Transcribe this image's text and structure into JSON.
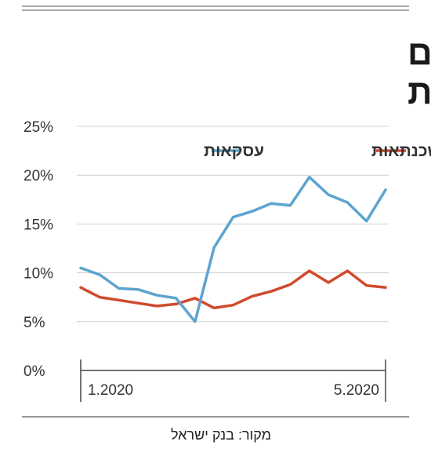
{
  "chart_data": {
    "type": "line",
    "title_lines": [
      "המשקיעים לא אחראים",
      "לקפיצה במשכנתאות"
    ],
    "source": "מקור: בנק ישראל",
    "ylim": [
      0,
      25
    ],
    "y_ticks": [
      0,
      5,
      10,
      15,
      20,
      25
    ],
    "y_tick_labels": [
      "0%",
      "5%",
      "10%",
      "15%",
      "20%",
      "25%"
    ],
    "x_tick_labels": [
      {
        "index": 0,
        "label": "1.2020"
      },
      {
        "index": 19,
        "label": "5.2020"
      }
    ],
    "grid": true,
    "legend_position": "top",
    "series": [
      {
        "name": "משכנתאות",
        "color": "#d04a2e",
        "values": [
          8.5,
          7.5,
          7.2,
          6.9,
          6.6,
          6.8,
          7.4,
          6.4,
          6.7,
          7.6,
          8.1,
          8.8,
          10.2,
          9.0,
          10.2,
          8.7,
          8.5
        ]
      },
      {
        "name": "עסקאות",
        "color": "#5da4cf",
        "values": [
          10.5,
          9.8,
          8.4,
          8.3,
          7.7,
          7.4,
          5.0,
          12.6,
          15.7,
          16.3,
          17.1,
          16.9,
          19.8,
          18.0,
          17.2,
          15.3,
          18.5
        ]
      }
    ]
  }
}
